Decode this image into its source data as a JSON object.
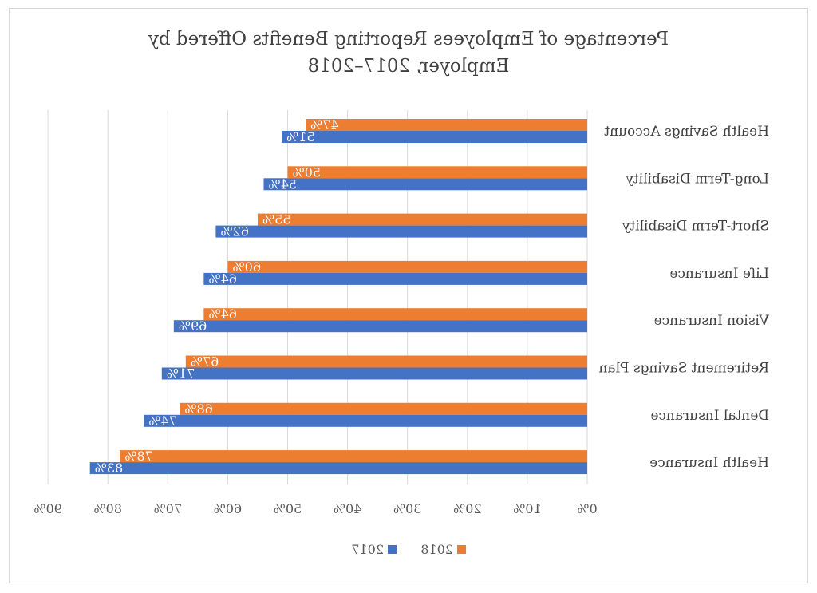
{
  "chart_data": {
    "type": "bar",
    "orientation": "horizontal",
    "mirrored": true,
    "title": "Percentage of Employees Reporting Benefits Offered by Employer, 2017–2018",
    "title_lines": [
      "Percentage of Employees Reporting Benefits Offered by",
      "Employer, 2017–2018"
    ],
    "categories": [
      "Health Savings Account",
      "Long-Term Disability",
      "Short-Term Disability",
      "Life Insurance",
      "Vision Insurance",
      "Retirement Savings Plan",
      "Dental Insurance",
      "Health Insurance"
    ],
    "series": [
      {
        "name": "2018",
        "color": "#ed7d31",
        "values": [
          47,
          50,
          55,
          60,
          64,
          67,
          68,
          78
        ],
        "labels": [
          "47%",
          "50%",
          "55%",
          "60%",
          "64%",
          "67%",
          "68%",
          "78%"
        ]
      },
      {
        "name": "2017",
        "color": "#4472c4",
        "values": [
          51,
          54,
          62,
          64,
          69,
          71,
          74,
          83
        ],
        "labels": [
          "51%",
          "54%",
          "62%",
          "64%",
          "69%",
          "71%",
          "74%",
          "83%"
        ]
      }
    ],
    "xlim": [
      0,
      90
    ],
    "xticks": [
      0,
      10,
      20,
      30,
      40,
      50,
      60,
      70,
      80,
      90
    ],
    "xtick_labels": [
      "0%",
      "10%",
      "20%",
      "30%",
      "40%",
      "50%",
      "60%",
      "70%",
      "80%",
      "90%"
    ],
    "grid": true,
    "legend": "bottom"
  }
}
